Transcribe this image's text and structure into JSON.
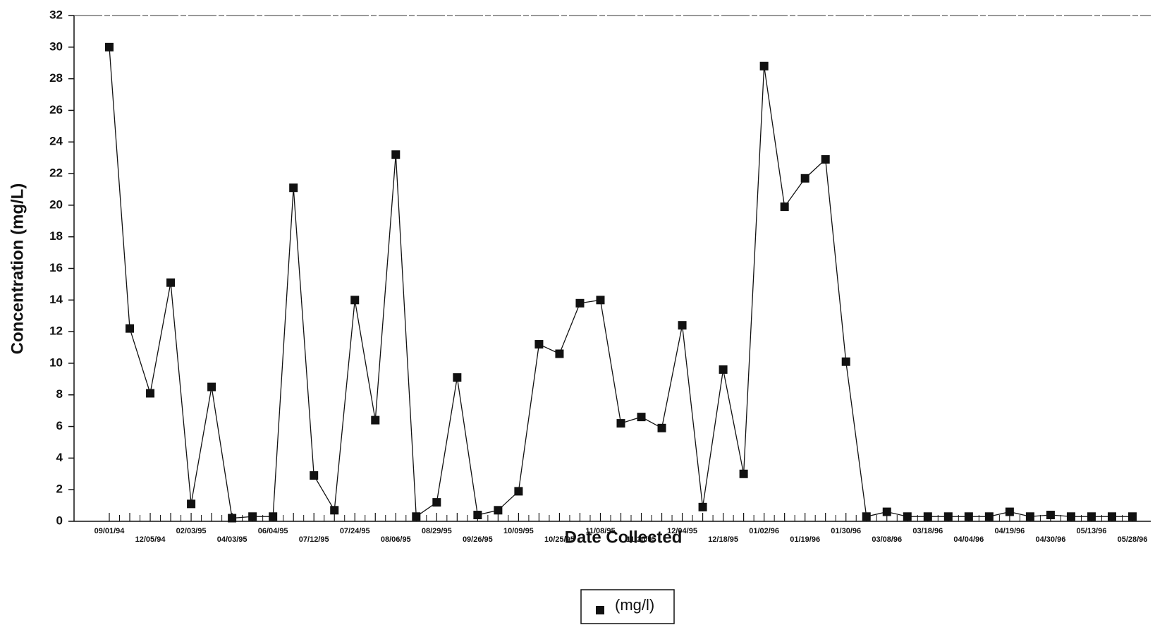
{
  "chart_data": {
    "type": "line",
    "x_label": "Date Collected",
    "y_label": "Concentration (mg/L)",
    "categories": [
      "09/01/94",
      null,
      "12/05/94",
      null,
      "02/03/95",
      null,
      "04/03/95",
      null,
      "06/04/95",
      null,
      "07/12/95",
      null,
      "07/24/95",
      null,
      "08/06/95",
      null,
      "08/29/95",
      null,
      "09/26/95",
      null,
      "10/09/95",
      null,
      "10/25/95",
      null,
      "11/08/95",
      null,
      "11/20/95",
      null,
      "12/04/95",
      null,
      "12/18/95",
      null,
      "01/02/96",
      null,
      "01/19/96",
      null,
      "01/30/96",
      null,
      "03/08/96",
      null,
      "03/18/96",
      null,
      "04/04/96",
      null,
      "04/19/96",
      null,
      "04/30/96",
      null,
      "05/13/96",
      null,
      "05/28/96"
    ],
    "series": [
      {
        "name": "(mg/l)",
        "color": "#111111",
        "values": [
          30,
          12.2,
          8.1,
          15.1,
          1.1,
          8.5,
          0.2,
          0.3,
          0.3,
          21.1,
          2.9,
          0.7,
          14,
          6.4,
          23.2,
          0.3,
          1.2,
          9.1,
          0.4,
          0.7,
          1.9,
          11.2,
          10.6,
          13.8,
          14,
          6.2,
          6.6,
          5.9,
          12.4,
          0.9,
          9.6,
          3.0,
          28.8,
          19.9,
          21.7,
          22.9,
          10.1,
          0.3,
          0.6,
          0.3,
          0.3,
          0.3,
          0.3,
          0.3,
          0.6,
          0.3,
          0.4,
          0.3,
          0.3,
          0.3,
          0.3
        ]
      }
    ],
    "ylim": [
      0,
      32
    ],
    "yticks": [
      0,
      2,
      4,
      6,
      8,
      10,
      12,
      14,
      16,
      18,
      20,
      22,
      24,
      26,
      28,
      30,
      32
    ],
    "legend": "bottom"
  }
}
